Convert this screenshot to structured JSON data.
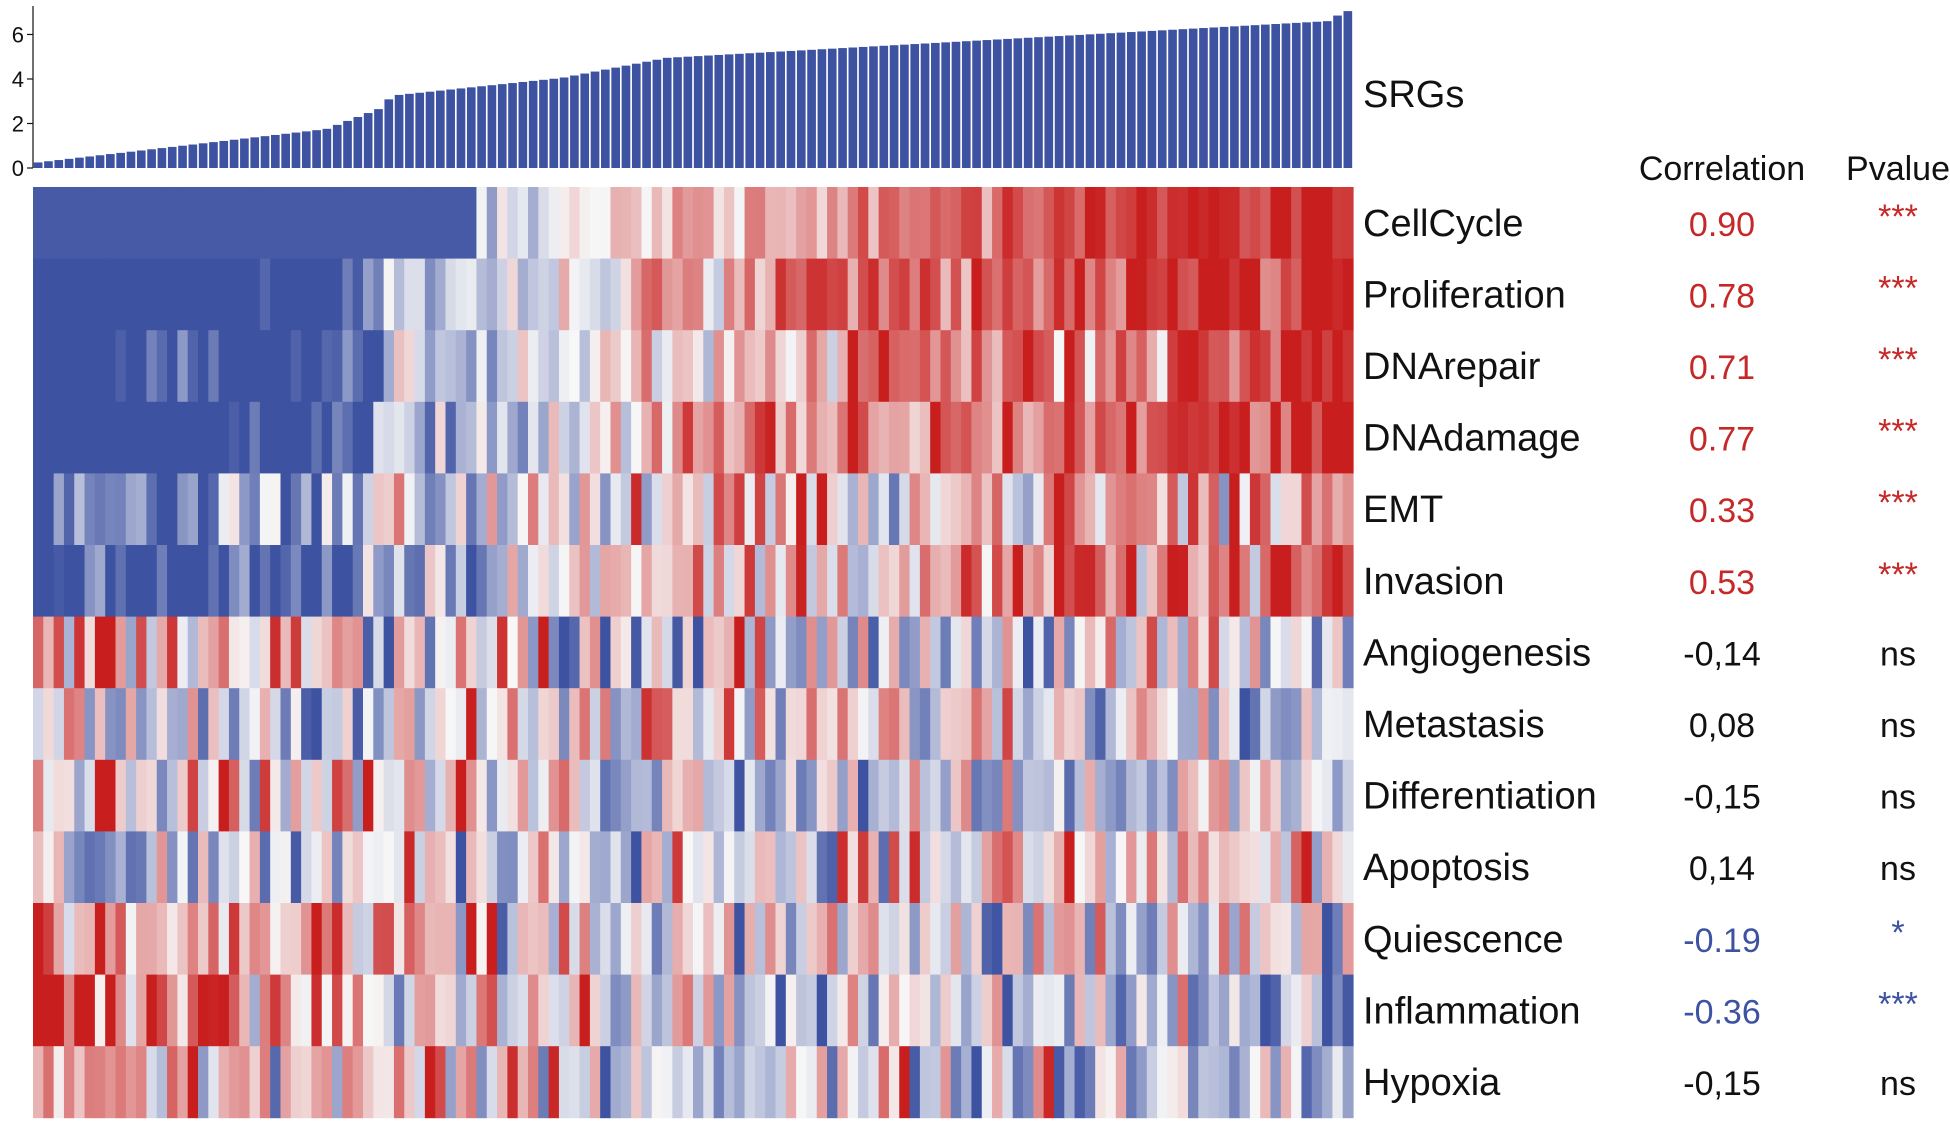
{
  "chart_data": {
    "type": "heatmap",
    "title": "",
    "bar_label": "SRGs",
    "bar_axis": {
      "ylim": [
        0,
        7.1
      ],
      "ticks": [
        0,
        2,
        4,
        6
      ]
    },
    "columns_header": {
      "correlation": "Correlation",
      "pvalue": "Pvalue"
    },
    "n_samples": 128,
    "colors": {
      "bar": "#3D52A1",
      "positive": "#C62828",
      "negative": "#3D52A1",
      "neutral": "#111111"
    },
    "rows": [
      {
        "name": "CellCycle",
        "correlation": "0.90",
        "pvalue": "***",
        "sign": "pos"
      },
      {
        "name": "Proliferation",
        "correlation": "0.78",
        "pvalue": "***",
        "sign": "pos"
      },
      {
        "name": "DNArepair",
        "correlation": "0.71",
        "pvalue": "***",
        "sign": "pos"
      },
      {
        "name": "DNAdamage",
        "correlation": "0.77",
        "pvalue": "***",
        "sign": "pos"
      },
      {
        "name": "EMT",
        "correlation": "0.33",
        "pvalue": "***",
        "sign": "pos"
      },
      {
        "name": "Invasion",
        "correlation": "0.53",
        "pvalue": "***",
        "sign": "pos"
      },
      {
        "name": "Angiogenesis",
        "correlation": "-0,14",
        "pvalue": "ns",
        "sign": "none"
      },
      {
        "name": "Metastasis",
        "correlation": "0,08",
        "pvalue": "ns",
        "sign": "none"
      },
      {
        "name": "Differentiation",
        "correlation": "-0,15",
        "pvalue": "ns",
        "sign": "none"
      },
      {
        "name": "Apoptosis",
        "correlation": "0,14",
        "pvalue": "ns",
        "sign": "none"
      },
      {
        "name": "Quiescence",
        "correlation": "-0.19",
        "pvalue": "*",
        "sign": "neg"
      },
      {
        "name": "Inflammation",
        "correlation": "-0.36",
        "pvalue": "***",
        "sign": "neg"
      },
      {
        "name": "Hypoxia",
        "correlation": "-0,15",
        "pvalue": "ns",
        "sign": "none"
      }
    ]
  }
}
